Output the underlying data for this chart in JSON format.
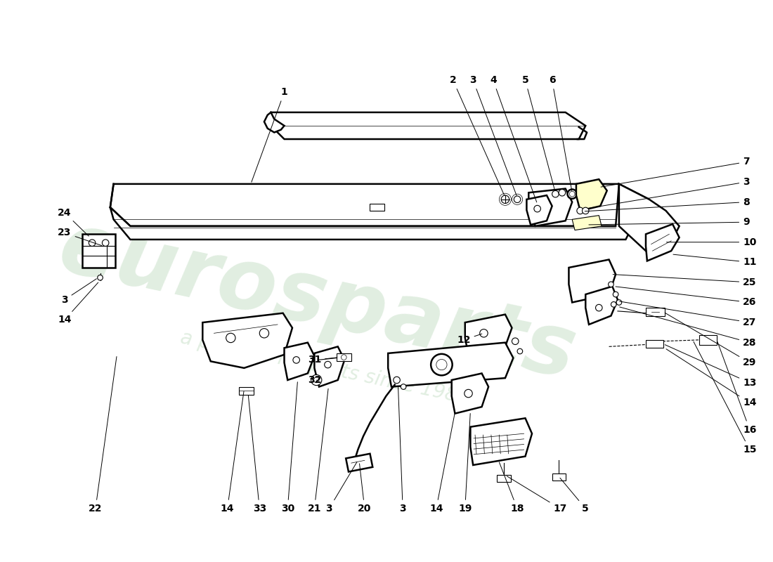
{
  "bg_color": "#ffffff",
  "line_color": "#000000",
  "lw_main": 1.8,
  "lw_thin": 0.8,
  "lw_hair": 0.5,
  "watermark1": "eurosparts",
  "watermark2": "a passion for parts since 1985",
  "wm_color": "#c8e0c8",
  "wm_alpha": 0.55,
  "top_labels": [
    [
      "1",
      370,
      118
    ],
    [
      "2",
      620,
      100
    ],
    [
      "3",
      652,
      100
    ],
    [
      "4",
      682,
      100
    ],
    [
      "5",
      730,
      100
    ],
    [
      "6",
      770,
      100
    ]
  ],
  "right_labels": [
    [
      "7",
      1055,
      222
    ],
    [
      "3",
      1055,
      252
    ],
    [
      "8",
      1055,
      282
    ],
    [
      "9",
      1055,
      312
    ],
    [
      "10",
      1055,
      342
    ],
    [
      "11",
      1055,
      372
    ],
    [
      "25",
      1055,
      402
    ],
    [
      "26",
      1055,
      432
    ],
    [
      "27",
      1055,
      462
    ],
    [
      "28",
      1055,
      492
    ],
    [
      "29",
      1055,
      522
    ],
    [
      "13",
      1055,
      552
    ],
    [
      "14",
      1055,
      582
    ]
  ],
  "bottom_labels": [
    [
      "15",
      1055,
      652
    ],
    [
      "16",
      1055,
      622
    ],
    [
      "5",
      820,
      740
    ],
    [
      "17",
      782,
      740
    ],
    [
      "18",
      718,
      740
    ],
    [
      "19",
      640,
      740
    ],
    [
      "14",
      597,
      740
    ],
    [
      "3",
      547,
      740
    ],
    [
      "20",
      490,
      740
    ],
    [
      "3",
      437,
      740
    ],
    [
      "14",
      285,
      740
    ],
    [
      "33",
      333,
      740
    ],
    [
      "30",
      375,
      740
    ],
    [
      "21",
      415,
      740
    ],
    [
      "22",
      88,
      740
    ]
  ],
  "left_labels": [
    [
      "24",
      42,
      298
    ],
    [
      "23",
      42,
      328
    ],
    [
      "3",
      42,
      428
    ],
    [
      "14",
      42,
      458
    ]
  ],
  "inner_labels": [
    [
      "31",
      415,
      518
    ],
    [
      "32",
      415,
      548
    ],
    [
      "12",
      638,
      488
    ]
  ]
}
